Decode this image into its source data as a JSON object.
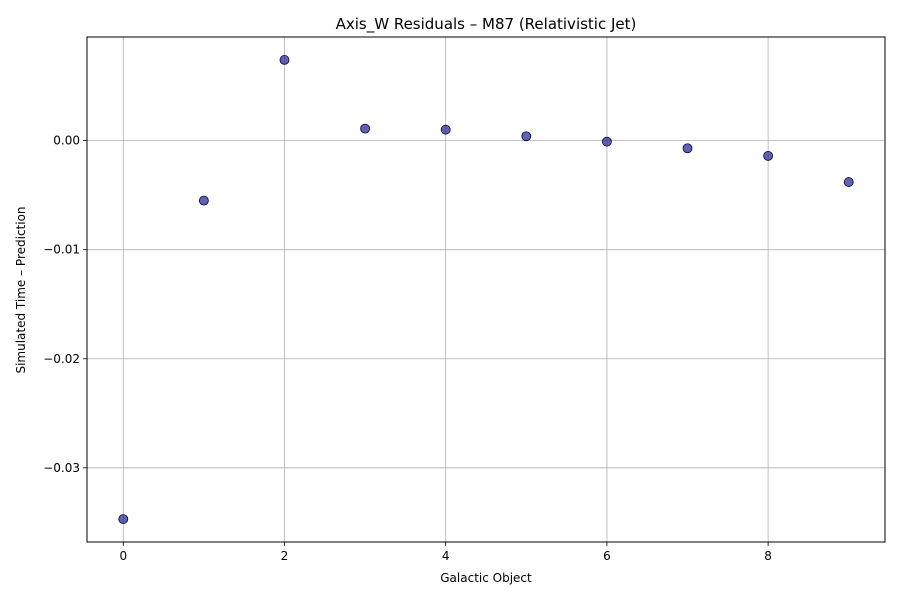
{
  "chart_data": {
    "type": "scatter",
    "title": "Axis_W Residuals – M87 (Relativistic Jet)",
    "xlabel": "Galactic Object",
    "ylabel": "Simulated Time – Prediction",
    "x": [
      0,
      1,
      2,
      3,
      4,
      5,
      6,
      7,
      8,
      9
    ],
    "y": [
      -0.0347,
      -0.0055,
      0.0074,
      0.0011,
      0.001,
      0.0004,
      -0.0001,
      -0.0007,
      -0.0014,
      -0.0038
    ],
    "xlim": [
      -0.45,
      9.45
    ],
    "ylim": [
      -0.0368,
      0.0095
    ],
    "xticks": [
      0,
      2,
      4,
      6,
      8
    ],
    "xtick_labels": [
      "0",
      "2",
      "4",
      "6",
      "8"
    ],
    "yticks": [
      -0.03,
      -0.02,
      -0.01,
      0.0
    ],
    "ytick_labels": [
      "−0.03",
      "−0.02",
      "−0.01",
      "0.00"
    ],
    "grid": true,
    "marker_color": "#1f1f8f",
    "marker_edge_color": "#000040"
  }
}
